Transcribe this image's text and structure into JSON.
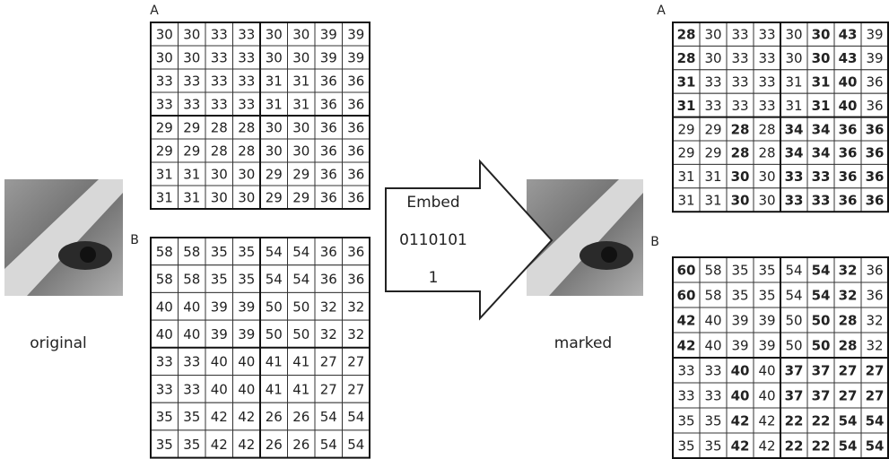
{
  "original": {
    "label": "original",
    "grids": [
      {
        "name": "A",
        "rows": [
          [
            30,
            30,
            33,
            33,
            30,
            30,
            39,
            39
          ],
          [
            30,
            30,
            33,
            33,
            30,
            30,
            39,
            39
          ],
          [
            33,
            33,
            33,
            33,
            31,
            31,
            36,
            36
          ],
          [
            33,
            33,
            33,
            33,
            31,
            31,
            36,
            36
          ],
          [
            29,
            29,
            28,
            28,
            30,
            30,
            36,
            36
          ],
          [
            29,
            29,
            28,
            28,
            30,
            30,
            36,
            36
          ],
          [
            31,
            31,
            30,
            30,
            29,
            29,
            36,
            36
          ],
          [
            31,
            31,
            30,
            30,
            29,
            29,
            36,
            36
          ]
        ]
      },
      {
        "name": "B",
        "rows": [
          [
            58,
            58,
            35,
            35,
            54,
            54,
            36,
            36
          ],
          [
            58,
            58,
            35,
            35,
            54,
            54,
            36,
            36
          ],
          [
            40,
            40,
            39,
            39,
            50,
            50,
            32,
            32
          ],
          [
            40,
            40,
            39,
            39,
            50,
            50,
            32,
            32
          ],
          [
            33,
            33,
            40,
            40,
            41,
            41,
            27,
            27
          ],
          [
            33,
            33,
            40,
            40,
            41,
            41,
            27,
            27
          ],
          [
            35,
            35,
            42,
            42,
            26,
            26,
            54,
            54
          ],
          [
            35,
            35,
            42,
            42,
            26,
            26,
            54,
            54
          ]
        ]
      }
    ]
  },
  "arrow": {
    "lines": [
      "Embed",
      "0110101",
      "1"
    ]
  },
  "marked": {
    "label": "marked",
    "grids": [
      {
        "name": "A",
        "rows": [
          [
            28,
            30,
            33,
            33,
            30,
            30,
            43,
            39
          ],
          [
            28,
            30,
            33,
            33,
            30,
            30,
            43,
            39
          ],
          [
            31,
            33,
            33,
            33,
            31,
            31,
            40,
            36
          ],
          [
            31,
            33,
            33,
            33,
            31,
            31,
            40,
            36
          ],
          [
            29,
            29,
            28,
            28,
            34,
            34,
            36,
            36
          ],
          [
            29,
            29,
            28,
            28,
            34,
            34,
            36,
            36
          ],
          [
            31,
            31,
            30,
            30,
            33,
            33,
            36,
            36
          ],
          [
            31,
            31,
            30,
            30,
            33,
            33,
            36,
            36
          ]
        ],
        "bold": [
          [
            true,
            false,
            false,
            false,
            false,
            true,
            true,
            false
          ],
          [
            true,
            false,
            false,
            false,
            false,
            true,
            true,
            false
          ],
          [
            true,
            false,
            false,
            false,
            false,
            true,
            true,
            false
          ],
          [
            true,
            false,
            false,
            false,
            false,
            true,
            true,
            false
          ],
          [
            false,
            false,
            true,
            false,
            true,
            true,
            true,
            true
          ],
          [
            false,
            false,
            true,
            false,
            true,
            true,
            true,
            true
          ],
          [
            false,
            false,
            true,
            false,
            true,
            true,
            true,
            true
          ],
          [
            false,
            false,
            true,
            false,
            true,
            true,
            true,
            true
          ]
        ]
      },
      {
        "name": "B",
        "rows": [
          [
            60,
            58,
            35,
            35,
            54,
            54,
            32,
            36
          ],
          [
            60,
            58,
            35,
            35,
            54,
            54,
            32,
            36
          ],
          [
            42,
            40,
            39,
            39,
            50,
            50,
            28,
            32
          ],
          [
            42,
            40,
            39,
            39,
            50,
            50,
            28,
            32
          ],
          [
            33,
            33,
            40,
            40,
            37,
            37,
            27,
            27
          ],
          [
            33,
            33,
            40,
            40,
            37,
            37,
            27,
            27
          ],
          [
            35,
            35,
            42,
            42,
            22,
            22,
            54,
            54
          ],
          [
            35,
            35,
            42,
            42,
            22,
            22,
            54,
            54
          ]
        ],
        "bold": [
          [
            true,
            false,
            false,
            false,
            false,
            true,
            true,
            false
          ],
          [
            true,
            false,
            false,
            false,
            false,
            true,
            true,
            false
          ],
          [
            true,
            false,
            false,
            false,
            false,
            true,
            true,
            false
          ],
          [
            true,
            false,
            false,
            false,
            false,
            true,
            true,
            false
          ],
          [
            false,
            false,
            true,
            false,
            true,
            true,
            true,
            true
          ],
          [
            false,
            false,
            true,
            false,
            true,
            true,
            true,
            true
          ],
          [
            false,
            false,
            true,
            false,
            true,
            true,
            true,
            true
          ],
          [
            false,
            false,
            true,
            false,
            true,
            true,
            true,
            true
          ]
        ]
      }
    ]
  }
}
